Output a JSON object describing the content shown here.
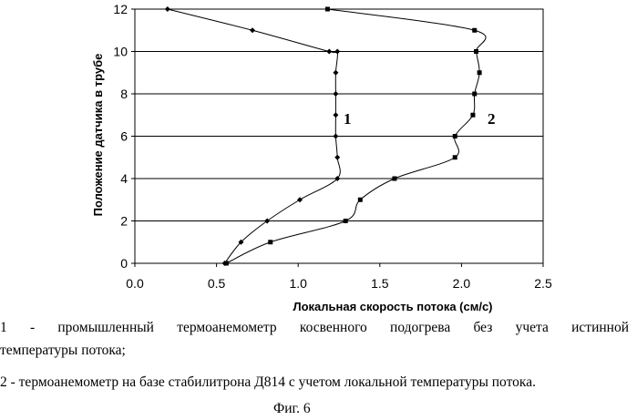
{
  "chart_data": {
    "type": "line",
    "xlabel": "Локальная скорость потока (см/с)",
    "ylabel": "Положение датчика в трубе",
    "xlim": [
      0,
      2.5
    ],
    "ylim": [
      0,
      12
    ],
    "xticks": [
      "0.0",
      "0.5",
      "1.0",
      "1.5",
      "2.0",
      "2.5"
    ],
    "yticks": [
      "0",
      "2",
      "4",
      "6",
      "8",
      "10",
      "12"
    ],
    "grid": "horizontal",
    "series": [
      {
        "name": "1",
        "marker": "diamond",
        "x": [
          0.55,
          0.65,
          0.81,
          1.01,
          1.24,
          1.24,
          1.23,
          1.23,
          1.23,
          1.23,
          1.24,
          1.19,
          0.72,
          0.2
        ],
        "y": [
          0,
          1,
          2,
          3,
          4,
          5,
          6,
          7,
          8,
          9,
          10,
          10,
          11,
          12
        ]
      },
      {
        "name": "2",
        "marker": "square",
        "x": [
          0.56,
          0.83,
          1.29,
          1.38,
          1.59,
          1.96,
          1.96,
          2.07,
          2.08,
          2.11,
          2.09,
          2.08,
          1.18
        ],
        "y": [
          0,
          1,
          2,
          3,
          4,
          5,
          6,
          7,
          8,
          9,
          10,
          11,
          12
        ]
      }
    ]
  },
  "caption": {
    "line1a": "1 - промышленный термоанемометр косвенного подогрева без учета истинной",
    "line1b": "температуры потока;",
    "line2": "2 - термоанемометр на базе стабилитрона Д814 с учетом локальной температуры потока.",
    "figure": "Фиг. 6"
  }
}
